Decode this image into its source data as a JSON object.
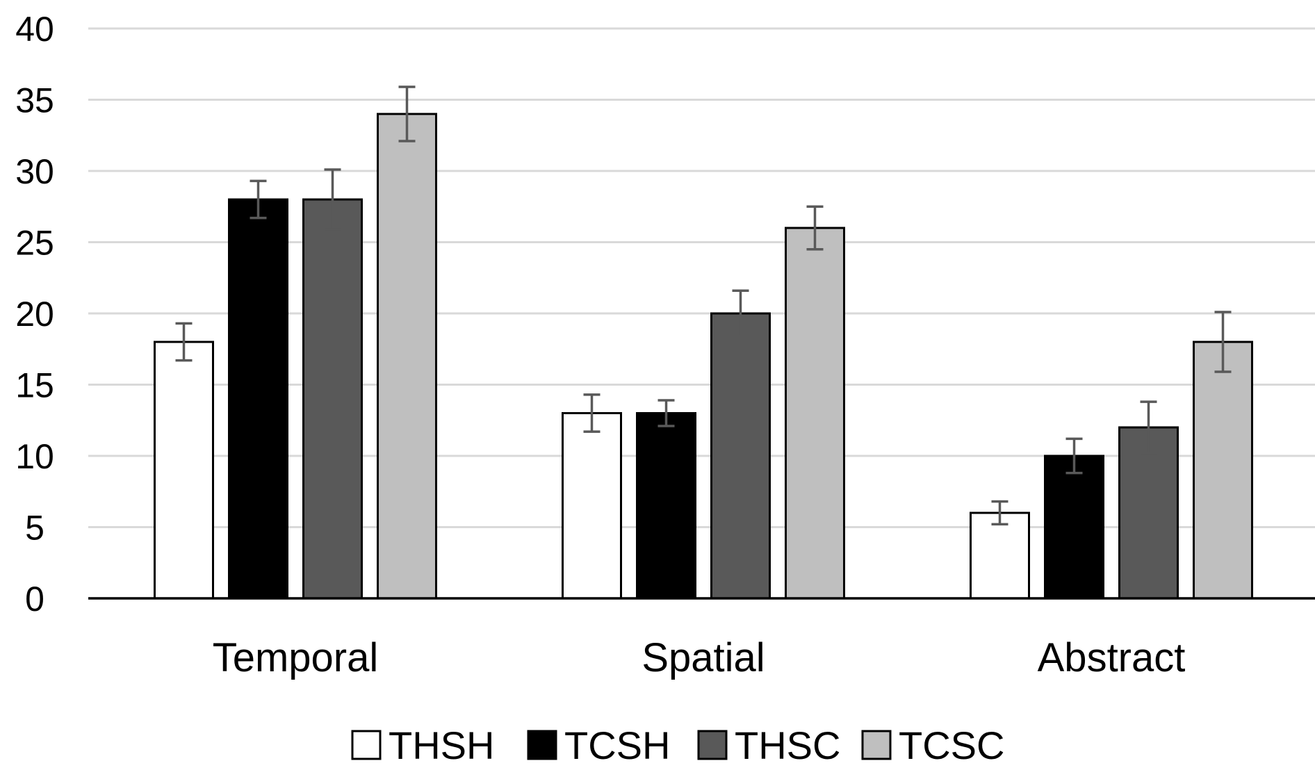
{
  "chart_data": {
    "type": "bar",
    "title": "",
    "xlabel": "",
    "ylabel": "",
    "ylim": [
      0,
      40
    ],
    "yticks": [
      0,
      5,
      10,
      15,
      20,
      25,
      30,
      35,
      40
    ],
    "grid": true,
    "legend_position": "bottom",
    "categories": [
      "Temporal",
      "Spatial",
      "Abstract"
    ],
    "series": [
      {
        "name": "THSH",
        "values": [
          18,
          13,
          6
        ],
        "errors": [
          1.3,
          1.3,
          0.8
        ],
        "color": "#ffffff"
      },
      {
        "name": "TCSH",
        "values": [
          28,
          13,
          10
        ],
        "errors": [
          1.3,
          0.9,
          1.2
        ],
        "color": "#000000"
      },
      {
        "name": "THSC",
        "values": [
          28,
          20,
          12
        ],
        "errors": [
          2.1,
          1.6,
          1.8
        ],
        "color": "#595959"
      },
      {
        "name": "TCSC",
        "values": [
          34,
          26,
          18
        ],
        "errors": [
          1.9,
          1.5,
          2.1
        ],
        "color": "#bfbfbf"
      }
    ],
    "colors": {
      "gridline": "#d9d9d9",
      "axis": "#000000",
      "bar_outline": "#000000",
      "error_bar": "#595959"
    }
  }
}
